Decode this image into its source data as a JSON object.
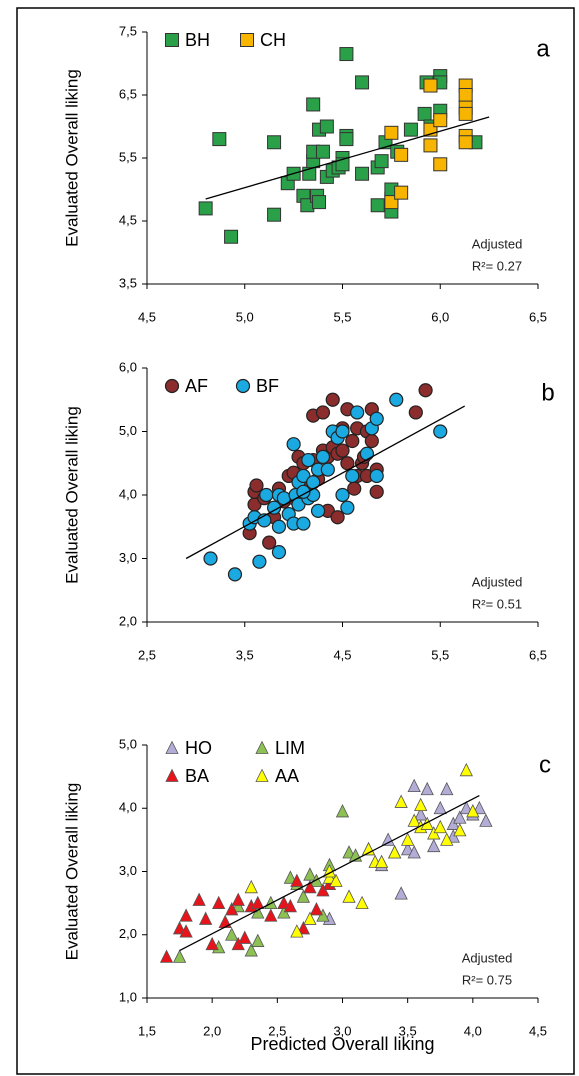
{
  "chart_data": [
    {
      "type": "scatter",
      "panel_label": "a",
      "y_label": "Evaluated Overall liking",
      "marker": "square",
      "note": [
        "Adjusted",
        "R²= 0.27"
      ],
      "xlim": [
        4.5,
        6.5
      ],
      "xticks": [
        {
          "value": 4.5,
          "label": "4,5"
        },
        {
          "value": 5.0,
          "label": "5,0"
        },
        {
          "value": 5.5,
          "label": "5,5"
        },
        {
          "value": 6.0,
          "label": "6,0"
        },
        {
          "value": 6.5,
          "label": "6,5"
        }
      ],
      "ylim": [
        3.5,
        7.5
      ],
      "yticks": [
        {
          "value": 3.5,
          "label": "3,5"
        },
        {
          "value": 4.5,
          "label": "4,5"
        },
        {
          "value": 5.5,
          "label": "5,5"
        },
        {
          "value": 6.5,
          "label": "6,5"
        },
        {
          "value": 7.5,
          "label": "7,5"
        }
      ],
      "series": [
        {
          "name": "BH",
          "color": "#2aa049",
          "x": [
            4.8,
            4.87,
            4.93,
            5.15,
            5.15,
            5.22,
            5.25,
            5.3,
            5.32,
            5.33,
            5.35,
            5.35,
            5.35,
            5.37,
            5.38,
            5.38,
            5.4,
            5.42,
            5.42,
            5.45,
            5.48,
            5.5,
            5.5,
            5.52,
            5.52,
            5.52,
            5.6,
            5.6,
            5.68,
            5.68,
            5.7,
            5.72,
            5.75,
            5.75,
            5.75,
            5.78,
            5.92,
            5.93,
            5.95,
            6.0,
            6.0,
            6.0,
            6.18,
            5.85
          ],
          "y": [
            4.7,
            5.8,
            4.25,
            5.75,
            4.6,
            5.1,
            5.25,
            4.9,
            4.75,
            5.25,
            5.45,
            5.6,
            6.35,
            4.9,
            4.8,
            5.95,
            5.6,
            6.0,
            5.2,
            5.3,
            5.35,
            5.5,
            5.4,
            5.85,
            5.8,
            7.15,
            5.25,
            6.7,
            4.75,
            5.35,
            5.45,
            5.75,
            4.65,
            4.85,
            5.0,
            5.6,
            6.2,
            6.7,
            6.0,
            6.8,
            6.7,
            6.25,
            5.75,
            5.95
          ]
        },
        {
          "name": "CH",
          "color": "#f7b500",
          "x": [
            5.75,
            5.75,
            5.8,
            5.8,
            5.95,
            5.95,
            5.95,
            6.0,
            6.0,
            6.13,
            6.13,
            6.13,
            6.13,
            6.13,
            6.13
          ],
          "y": [
            5.9,
            4.8,
            5.55,
            4.95,
            6.65,
            5.95,
            5.7,
            6.1,
            5.4,
            6.65,
            6.5,
            6.3,
            6.2,
            5.85,
            5.75
          ]
        }
      ],
      "trendline": {
        "x": [
          4.8,
          6.25
        ],
        "y": [
          4.85,
          6.15
        ]
      }
    },
    {
      "type": "scatter",
      "panel_label": "b",
      "y_label": "Evaluated Overall liking",
      "marker": "circle",
      "note": [
        "Adjusted",
        "R²= 0.51"
      ],
      "xlim": [
        2.5,
        6.5
      ],
      "xticks": [
        {
          "value": 2.5,
          "label": "2,5"
        },
        {
          "value": 3.5,
          "label": "3,5"
        },
        {
          "value": 4.5,
          "label": "4,5"
        },
        {
          "value": 5.5,
          "label": "5,5"
        },
        {
          "value": 6.5,
          "label": "6,5"
        }
      ],
      "ylim": [
        2.0,
        6.0
      ],
      "yticks": [
        {
          "value": 2.0,
          "label": "2,0"
        },
        {
          "value": 3.0,
          "label": "3,0"
        },
        {
          "value": 4.0,
          "label": "4,0"
        },
        {
          "value": 5.0,
          "label": "5,0"
        },
        {
          "value": 6.0,
          "label": "6,0"
        }
      ],
      "series": [
        {
          "name": "AF",
          "color": "#8b2d2d",
          "x": [
            3.55,
            3.6,
            3.6,
            3.62,
            3.7,
            3.75,
            3.8,
            3.85,
            3.9,
            3.95,
            4.0,
            4.05,
            4.1,
            4.15,
            4.2,
            4.25,
            4.3,
            4.3,
            4.35,
            4.35,
            4.4,
            4.4,
            4.45,
            4.45,
            4.5,
            4.5,
            4.55,
            4.55,
            4.6,
            4.62,
            4.65,
            4.65,
            4.7,
            4.72,
            4.75,
            4.75,
            4.8,
            4.8,
            4.85,
            4.85,
            5.25,
            5.35,
            4.2,
            4.0
          ],
          "y": [
            3.4,
            3.85,
            4.05,
            4.15,
            3.95,
            3.25,
            3.65,
            4.1,
            3.9,
            4.3,
            4.35,
            4.6,
            4.5,
            4.15,
            5.25,
            4.25,
            5.3,
            4.7,
            4.6,
            3.75,
            5.5,
            4.75,
            4.65,
            3.65,
            5.05,
            4.7,
            5.35,
            4.5,
            4.85,
            4.1,
            5.05,
            4.3,
            4.5,
            4.6,
            4.3,
            5.0,
            4.85,
            5.35,
            4.4,
            4.05,
            5.3,
            5.65,
            4.55,
            3.95
          ]
        },
        {
          "name": "BF",
          "color": "#1ba9e1",
          "x": [
            3.15,
            3.4,
            3.55,
            3.6,
            3.65,
            3.7,
            3.72,
            3.8,
            3.85,
            3.85,
            3.85,
            3.9,
            3.95,
            4.0,
            4.0,
            4.02,
            4.05,
            4.05,
            4.1,
            4.1,
            4.15,
            4.2,
            4.2,
            4.25,
            4.25,
            4.3,
            4.35,
            4.4,
            4.45,
            4.5,
            4.5,
            4.55,
            4.6,
            4.65,
            4.8,
            4.85,
            4.85,
            4.75,
            5.05,
            5.5,
            4.15,
            4.1
          ],
          "y": [
            3.0,
            2.75,
            3.55,
            3.65,
            2.95,
            3.6,
            4.0,
            3.8,
            4.0,
            3.1,
            3.5,
            3.95,
            3.7,
            3.55,
            4.8,
            4.0,
            3.85,
            4.2,
            4.3,
            3.55,
            3.95,
            4.2,
            4.0,
            4.4,
            3.75,
            4.6,
            4.4,
            5.0,
            4.9,
            5.0,
            4.0,
            3.8,
            4.3,
            5.3,
            5.05,
            5.2,
            4.3,
            4.65,
            5.5,
            5.0,
            4.55,
            4.05
          ]
        }
      ],
      "trendline": {
        "x": [
          2.9,
          5.75
        ],
        "y": [
          3.0,
          5.4
        ]
      }
    },
    {
      "type": "scatter",
      "panel_label": "c",
      "y_label": "Evaluated Overall liking",
      "x_label": "Predicted Overall liking",
      "marker": "triangle",
      "note": [
        "Adjusted",
        "R²= 0.75"
      ],
      "xlim": [
        1.5,
        4.5
      ],
      "xticks": [
        {
          "value": 1.5,
          "label": "1,5"
        },
        {
          "value": 2.0,
          "label": "2,0"
        },
        {
          "value": 2.5,
          "label": "2,5"
        },
        {
          "value": 3.0,
          "label": "3,0"
        },
        {
          "value": 3.5,
          "label": "3,5"
        },
        {
          "value": 4.0,
          "label": "4,0"
        },
        {
          "value": 4.5,
          "label": "4,5"
        }
      ],
      "ylim": [
        1.0,
        5.0
      ],
      "yticks": [
        {
          "value": 1.0,
          "label": "1,0"
        },
        {
          "value": 2.0,
          "label": "2,0"
        },
        {
          "value": 3.0,
          "label": "3,0"
        },
        {
          "value": 4.0,
          "label": "4,0"
        },
        {
          "value": 5.0,
          "label": "5,0"
        }
      ],
      "series": [
        {
          "name": "HO",
          "color": "#b3acd6",
          "x": [
            2.9,
            3.35,
            3.4,
            3.45,
            3.5,
            3.55,
            3.6,
            3.65,
            3.7,
            3.75,
            3.8,
            3.85,
            3.9,
            3.95,
            4.0,
            4.05,
            4.1,
            3.55,
            3.85,
            3.3
          ],
          "y": [
            2.25,
            3.5,
            3.3,
            2.65,
            3.35,
            4.35,
            3.9,
            4.3,
            3.4,
            4.0,
            4.3,
            3.75,
            3.85,
            4.0,
            3.9,
            4.0,
            3.8,
            3.3,
            3.55,
            3.1
          ]
        },
        {
          "name": "LIM",
          "color": "#8dc153",
          "x": [
            1.75,
            2.05,
            2.15,
            2.2,
            2.3,
            2.35,
            2.45,
            2.55,
            2.65,
            2.7,
            2.75,
            2.8,
            2.85,
            2.9,
            3.0,
            3.05,
            3.1,
            3.2,
            2.35,
            2.6
          ],
          "y": [
            1.65,
            1.8,
            2.0,
            2.45,
            1.75,
            1.9,
            2.5,
            2.35,
            2.8,
            2.6,
            2.95,
            2.85,
            2.3,
            3.1,
            3.95,
            3.3,
            3.25,
            3.35,
            2.35,
            2.9
          ]
        },
        {
          "name": "BA",
          "color": "#e8141b",
          "x": [
            1.65,
            1.75,
            1.8,
            1.8,
            1.9,
            1.95,
            2.0,
            2.05,
            2.1,
            2.15,
            2.2,
            2.25,
            2.3,
            2.35,
            2.45,
            2.55,
            2.6,
            2.65,
            2.7,
            2.75,
            2.8,
            2.85,
            2.9,
            2.2
          ],
          "y": [
            1.65,
            2.1,
            2.3,
            2.05,
            2.55,
            2.25,
            1.85,
            2.5,
            2.2,
            2.4,
            1.85,
            1.95,
            2.45,
            2.5,
            2.3,
            2.5,
            2.45,
            2.85,
            2.1,
            2.75,
            2.4,
            2.7,
            2.8,
            2.55
          ]
        },
        {
          "name": "AA",
          "color": "#ffff00",
          "x": [
            2.3,
            2.65,
            2.75,
            2.9,
            2.95,
            3.05,
            3.15,
            3.2,
            3.25,
            3.3,
            3.4,
            3.45,
            3.5,
            3.55,
            3.6,
            3.65,
            3.7,
            3.75,
            3.8,
            3.9,
            3.95,
            4.0,
            3.6,
            2.9
          ],
          "y": [
            2.75,
            2.05,
            2.25,
            2.9,
            2.85,
            2.6,
            2.5,
            3.35,
            3.15,
            3.15,
            3.3,
            4.1,
            3.5,
            3.8,
            3.7,
            3.75,
            3.6,
            3.7,
            3.5,
            3.65,
            4.6,
            3.95,
            4.05,
            3.0
          ]
        }
      ],
      "trendline": {
        "x": [
          1.75,
          4.05
        ],
        "y": [
          1.75,
          4.2
        ]
      }
    }
  ]
}
